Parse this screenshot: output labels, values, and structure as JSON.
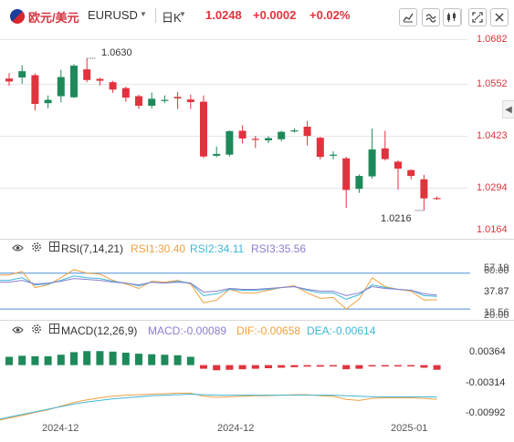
{
  "header": {
    "symbol_cn": "欧元/美元",
    "symbol": "EURUSD",
    "timeframe": "日K",
    "price": "1.0248",
    "change": "+0.0002",
    "change_pct": "+0.02%"
  },
  "toolbar_icons": [
    "draw-icon",
    "indicator-icon",
    "compare-icon",
    "fullscreen-icon",
    "close-icon"
  ],
  "price_axis": [
    "1.0682",
    "1.0552",
    "1.0423",
    "1.0294",
    "1.0164"
  ],
  "annotations": {
    "high": "1.0630",
    "low": "1.0216"
  },
  "rsi": {
    "title": "RSI(7,14,21)",
    "rsi1": "RSI1:30.40",
    "rsi2": "RSI2:34.11",
    "rsi3": "RSI3:35.56",
    "axis": [
      "57.19",
      "60.00",
      "37.87",
      "18.56",
      "20.00"
    ]
  },
  "macd": {
    "title": "MACD(12,26,9)",
    "macd": "MACD:-0.00089",
    "dif": "DIF:-0.00658",
    "dea": "DEA:-0.00614",
    "axis": [
      "0.00364",
      "-0.00314",
      "-0.00992"
    ]
  },
  "time_axis": [
    "2024-12",
    "2024-12",
    "2025-01"
  ],
  "colors": {
    "up": "#e0333e",
    "down": "#1e8a5a",
    "rsi1": "#f0a040",
    "rsi2": "#3fb6d8",
    "rsi3": "#8a7fd0",
    "dif": "#f0a040",
    "dea": "#3fb6d8"
  },
  "chart_data": {
    "type": "candlestick",
    "candles": [
      {
        "o": 1.0575,
        "h": 1.059,
        "l": 1.0555,
        "c": 1.0567
      },
      {
        "o": 1.0578,
        "h": 1.0611,
        "l": 1.0561,
        "c": 1.0595
      },
      {
        "o": 1.0584,
        "h": 1.0589,
        "l": 1.0488,
        "c": 1.0506
      },
      {
        "o": 1.0508,
        "h": 1.0529,
        "l": 1.0494,
        "c": 1.0517
      },
      {
        "o": 1.0527,
        "h": 1.0599,
        "l": 1.051,
        "c": 1.0579
      },
      {
        "o": 1.0524,
        "h": 1.0614,
        "l": 1.0522,
        "c": 1.061
      },
      {
        "o": 1.06,
        "h": 1.063,
        "l": 1.0565,
        "c": 1.0571
      },
      {
        "o": 1.0574,
        "h": 1.0577,
        "l": 1.0556,
        "c": 1.0569
      },
      {
        "o": 1.0565,
        "h": 1.0569,
        "l": 1.0536,
        "c": 1.0545
      },
      {
        "o": 1.0549,
        "h": 1.0553,
        "l": 1.0512,
        "c": 1.0523
      },
      {
        "o": 1.0527,
        "h": 1.0531,
        "l": 1.0492,
        "c": 1.0501
      },
      {
        "o": 1.0501,
        "h": 1.0537,
        "l": 1.0494,
        "c": 1.052
      },
      {
        "o": 1.0517,
        "h": 1.0529,
        "l": 1.0508,
        "c": 1.0517
      },
      {
        "o": 1.0525,
        "h": 1.0538,
        "l": 1.0492,
        "c": 1.0521
      },
      {
        "o": 1.0518,
        "h": 1.0531,
        "l": 1.0492,
        "c": 1.0511
      },
      {
        "o": 1.0512,
        "h": 1.0529,
        "l": 1.0359,
        "c": 1.0363
      },
      {
        "o": 1.0365,
        "h": 1.039,
        "l": 1.0361,
        "c": 1.037
      },
      {
        "o": 1.0368,
        "h": 1.0434,
        "l": 1.0363,
        "c": 1.0432
      },
      {
        "o": 1.0433,
        "h": 1.0448,
        "l": 1.0398,
        "c": 1.0412
      },
      {
        "o": 1.0411,
        "h": 1.0419,
        "l": 1.0386,
        "c": 1.0408
      },
      {
        "o": 1.0407,
        "h": 1.0418,
        "l": 1.0399,
        "c": 1.0413
      },
      {
        "o": 1.041,
        "h": 1.0433,
        "l": 1.0404,
        "c": 1.043
      },
      {
        "o": 1.0433,
        "h": 1.044,
        "l": 1.0428,
        "c": 1.0434
      },
      {
        "o": 1.0444,
        "h": 1.046,
        "l": 1.0393,
        "c": 1.0419
      },
      {
        "o": 1.0414,
        "h": 1.0416,
        "l": 1.0355,
        "c": 1.0362
      },
      {
        "o": 1.0366,
        "h": 1.0377,
        "l": 1.0355,
        "c": 1.0368
      },
      {
        "o": 1.0358,
        "h": 1.0362,
        "l": 1.0223,
        "c": 1.0272
      },
      {
        "o": 1.0275,
        "h": 1.0314,
        "l": 1.0264,
        "c": 1.031
      },
      {
        "o": 1.0309,
        "h": 1.0439,
        "l": 1.0303,
        "c": 1.0382
      },
      {
        "o": 1.0385,
        "h": 1.0433,
        "l": 1.0352,
        "c": 1.0356
      },
      {
        "o": 1.0349,
        "h": 1.0352,
        "l": 1.0273,
        "c": 1.033
      },
      {
        "o": 1.0326,
        "h": 1.0328,
        "l": 1.0301,
        "c": 1.031
      },
      {
        "o": 1.0301,
        "h": 1.0313,
        "l": 1.0216,
        "c": 1.0249
      },
      {
        "o": 1.025,
        "h": 1.0254,
        "l": 1.0245,
        "c": 1.0248
      }
    ],
    "rsi_ylim": [
      10,
      75
    ],
    "rsi1": [
      58,
      62,
      44,
      47,
      55,
      64,
      60,
      59,
      52,
      48,
      43,
      51,
      50,
      52,
      48,
      27,
      30,
      42,
      38,
      38,
      41,
      44,
      46,
      38,
      32,
      33,
      20,
      31,
      55,
      45,
      42,
      40,
      30,
      30.4
    ],
    "rsi2": [
      52,
      55,
      47,
      48,
      52,
      57,
      55,
      54,
      51,
      49,
      46,
      50,
      49,
      51,
      49,
      35,
      37,
      42,
      41,
      41,
      42,
      44,
      45,
      41,
      38,
      38,
      31,
      36,
      47,
      44,
      42,
      41,
      35,
      34.11
    ],
    "rsi3": [
      50,
      52,
      48,
      49,
      51,
      54,
      53,
      52,
      50,
      49,
      47,
      50,
      49,
      50,
      49,
      39,
      40,
      43,
      42,
      42,
      43,
      44,
      45,
      42,
      40,
      40,
      35,
      38,
      45,
      43,
      42,
      41,
      37,
      35.56
    ],
    "macd_ylim": [
      -0.0106,
      0.0045
    ],
    "macd_hist": [
      0.0016,
      0.0018,
      0.0017,
      0.0017,
      0.002,
      0.0025,
      0.0027,
      0.0027,
      0.0026,
      0.0024,
      0.0022,
      0.0021,
      0.002,
      0.0019,
      0.0016,
      -0.0007,
      -0.001,
      -0.0009,
      -0.0008,
      -0.0007,
      -0.0006,
      -0.0005,
      -0.0004,
      -0.0003,
      -0.0003,
      -0.0002,
      -0.0008,
      -0.0007,
      -0.0001,
      -0.0001,
      -0.0001,
      -0.0001,
      -0.0005,
      -0.00089
    ],
    "dif": [
      -0.0102,
      -0.0097,
      -0.0091,
      -0.0086,
      -0.0079,
      -0.0072,
      -0.0067,
      -0.0063,
      -0.006,
      -0.0058,
      -0.0057,
      -0.0056,
      -0.0055,
      -0.0054,
      -0.0054,
      -0.006,
      -0.0062,
      -0.0061,
      -0.006,
      -0.0059,
      -0.0059,
      -0.0058,
      -0.0057,
      -0.0057,
      -0.0059,
      -0.006,
      -0.0066,
      -0.0068,
      -0.0064,
      -0.0063,
      -0.0063,
      -0.0063,
      -0.0064,
      -0.00658
    ],
    "dea": [
      -0.01,
      -0.0095,
      -0.009,
      -0.0085,
      -0.008,
      -0.0075,
      -0.0071,
      -0.0068,
      -0.0065,
      -0.0063,
      -0.0061,
      -0.0059,
      -0.0058,
      -0.0057,
      -0.0056,
      -0.0057,
      -0.0058,
      -0.0058,
      -0.0058,
      -0.0058,
      -0.0058,
      -0.0058,
      -0.0058,
      -0.0058,
      -0.0058,
      -0.0058,
      -0.0059,
      -0.006,
      -0.0061,
      -0.0061,
      -0.0061,
      -0.0061,
      -0.0061,
      -0.00614
    ]
  }
}
